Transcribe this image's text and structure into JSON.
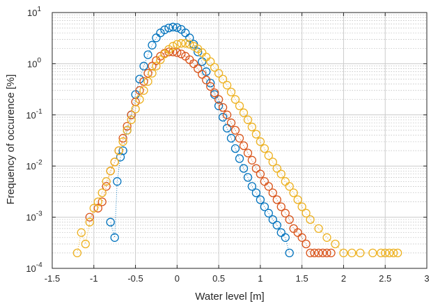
{
  "chart_data": {
    "type": "scatter",
    "xlabel": "Water level [m]",
    "ylabel": "Frequency of occurence [%]",
    "xlim": [
      -1.5,
      3
    ],
    "ylim": [
      0.0001,
      10
    ],
    "yscale": "log",
    "grid": true,
    "minor_grid": true,
    "xticks": [
      {
        "v": -1.5,
        "label": "-1.5"
      },
      {
        "v": -1,
        "label": "-1"
      },
      {
        "v": -0.5,
        "label": "-0.5"
      },
      {
        "v": 0,
        "label": "0"
      },
      {
        "v": 0.5,
        "label": "0.5"
      },
      {
        "v": 1,
        "label": "1"
      },
      {
        "v": 1.5,
        "label": "1.5"
      },
      {
        "v": 2,
        "label": "2"
      },
      {
        "v": 2.5,
        "label": "2.5"
      },
      {
        "v": 3,
        "label": "3"
      }
    ],
    "yticks": [
      {
        "v": 0.0001,
        "base": "10",
        "exp": "-4"
      },
      {
        "v": 0.001,
        "base": "10",
        "exp": "-3"
      },
      {
        "v": 0.01,
        "base": "10",
        "exp": "-2"
      },
      {
        "v": 0.1,
        "base": "10",
        "exp": "-1"
      },
      {
        "v": 1,
        "base": "10",
        "exp": "0"
      },
      {
        "v": 10,
        "base": "10",
        "exp": "1"
      }
    ],
    "series": [
      {
        "color": "#0072BD",
        "x": [
          -0.8,
          -0.75,
          -0.72,
          -0.68,
          -0.65,
          -0.6,
          -0.55,
          -0.5,
          -0.45,
          -0.4,
          -0.35,
          -0.3,
          -0.25,
          -0.2,
          -0.15,
          -0.1,
          -0.05,
          0.0,
          0.05,
          0.1,
          0.15,
          0.2,
          0.25,
          0.3,
          0.35,
          0.4,
          0.45,
          0.5,
          0.55,
          0.6,
          0.65,
          0.7,
          0.75,
          0.8,
          0.85,
          0.9,
          0.95,
          1.0,
          1.05,
          1.1,
          1.15,
          1.2,
          1.25,
          1.3,
          1.35
        ],
        "y": [
          0.0008,
          0.0004,
          0.005,
          0.015,
          0.02,
          0.05,
          0.1,
          0.25,
          0.5,
          0.9,
          1.5,
          2.3,
          3.2,
          4.0,
          4.6,
          5.0,
          5.2,
          5.1,
          4.7,
          4.0,
          3.2,
          2.4,
          1.7,
          1.1,
          0.7,
          0.42,
          0.25,
          0.15,
          0.09,
          0.055,
          0.035,
          0.022,
          0.014,
          0.009,
          0.006,
          0.004,
          0.003,
          0.0022,
          0.0016,
          0.0012,
          0.0009,
          0.0007,
          0.0005,
          0.0004,
          0.0002
        ]
      },
      {
        "color": "#D95319",
        "x": [
          -1.05,
          -0.95,
          -0.9,
          -0.85,
          -0.8,
          -0.75,
          -0.7,
          -0.65,
          -0.6,
          -0.55,
          -0.5,
          -0.45,
          -0.4,
          -0.35,
          -0.3,
          -0.25,
          -0.2,
          -0.15,
          -0.1,
          -0.05,
          0.0,
          0.05,
          0.1,
          0.15,
          0.2,
          0.25,
          0.3,
          0.35,
          0.4,
          0.45,
          0.5,
          0.55,
          0.6,
          0.65,
          0.7,
          0.75,
          0.8,
          0.85,
          0.9,
          0.95,
          1.0,
          1.05,
          1.1,
          1.15,
          1.2,
          1.25,
          1.3,
          1.35,
          1.4,
          1.45,
          1.5,
          1.55,
          1.6,
          1.65,
          1.7,
          1.75,
          1.8,
          1.85
        ],
        "y": [
          0.001,
          0.0015,
          0.002,
          0.004,
          0.008,
          0.012,
          0.02,
          0.035,
          0.06,
          0.1,
          0.18,
          0.3,
          0.45,
          0.65,
          0.9,
          1.15,
          1.4,
          1.6,
          1.7,
          1.7,
          1.65,
          1.55,
          1.4,
          1.2,
          1.0,
          0.8,
          0.62,
          0.48,
          0.36,
          0.27,
          0.2,
          0.14,
          0.1,
          0.07,
          0.05,
          0.035,
          0.025,
          0.018,
          0.013,
          0.009,
          0.007,
          0.005,
          0.004,
          0.003,
          0.0022,
          0.0016,
          0.0012,
          0.0009,
          0.0006,
          0.0005,
          0.0004,
          0.0003,
          0.0002,
          0.0002,
          0.0002,
          0.0002,
          0.0002,
          0.0002
        ]
      },
      {
        "color": "#EDB120",
        "x": [
          -1.2,
          -1.15,
          -1.1,
          -1.05,
          -1.0,
          -0.95,
          -0.9,
          -0.85,
          -0.8,
          -0.75,
          -0.7,
          -0.65,
          -0.6,
          -0.55,
          -0.5,
          -0.45,
          -0.4,
          -0.35,
          -0.3,
          -0.25,
          -0.2,
          -0.15,
          -0.1,
          -0.05,
          0.0,
          0.05,
          0.1,
          0.15,
          0.2,
          0.25,
          0.3,
          0.35,
          0.4,
          0.45,
          0.5,
          0.55,
          0.6,
          0.65,
          0.7,
          0.75,
          0.8,
          0.85,
          0.9,
          0.95,
          1.0,
          1.05,
          1.1,
          1.15,
          1.2,
          1.25,
          1.3,
          1.35,
          1.4,
          1.45,
          1.5,
          1.55,
          1.6,
          1.7,
          1.8,
          1.9,
          2.0,
          2.1,
          2.2,
          2.35,
          2.45,
          2.5,
          2.55,
          2.6,
          2.65
        ],
        "y": [
          0.0002,
          0.0005,
          0.0003,
          0.0008,
          0.0015,
          0.002,
          0.003,
          0.005,
          0.008,
          0.012,
          0.02,
          0.03,
          0.05,
          0.08,
          0.13,
          0.2,
          0.3,
          0.45,
          0.65,
          0.9,
          1.2,
          1.55,
          1.9,
          2.2,
          2.4,
          2.5,
          2.5,
          2.4,
          2.2,
          1.95,
          1.65,
          1.35,
          1.1,
          0.85,
          0.65,
          0.5,
          0.38,
          0.28,
          0.2,
          0.15,
          0.11,
          0.08,
          0.058,
          0.042,
          0.03,
          0.022,
          0.016,
          0.012,
          0.009,
          0.007,
          0.005,
          0.004,
          0.003,
          0.0022,
          0.0016,
          0.0012,
          0.0009,
          0.0006,
          0.0004,
          0.0003,
          0.0002,
          0.0002,
          0.0002,
          0.0002,
          0.0002,
          0.0002,
          0.0002,
          0.0002,
          0.0002
        ]
      }
    ]
  }
}
